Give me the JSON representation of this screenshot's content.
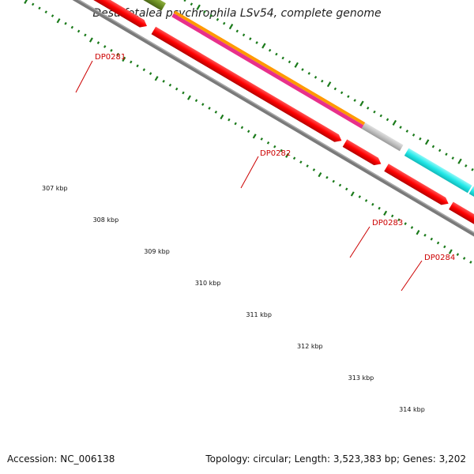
{
  "title": "Desulfotalea psychrophila LSv54, complete genome",
  "footer": {
    "accession": "Accession: NC_006138",
    "topology": "Topology: circular; Length: 3,523,383 bp; Genes: 3,202"
  },
  "genes": [
    {
      "name": "DP0281"
    },
    {
      "name": "DP0282"
    },
    {
      "name": "DP0283"
    },
    {
      "name": "DP0284"
    }
  ],
  "kbp_labels": [
    "307 kbp",
    "308 kbp",
    "309 kbp",
    "310 kbp",
    "311 kbp",
    "312 kbp",
    "313 kbp",
    "314 kbp"
  ],
  "colors": {
    "olive": "#6b8e23",
    "orange": "#ff9900",
    "magenta": "#e8308a",
    "gray": "#c0c0c0",
    "cyan": "#22e8e8",
    "red": "#ff0000",
    "backbone": "#7a7a7a",
    "tick": "#1a7a1a",
    "label_red": "#cc0000"
  }
}
